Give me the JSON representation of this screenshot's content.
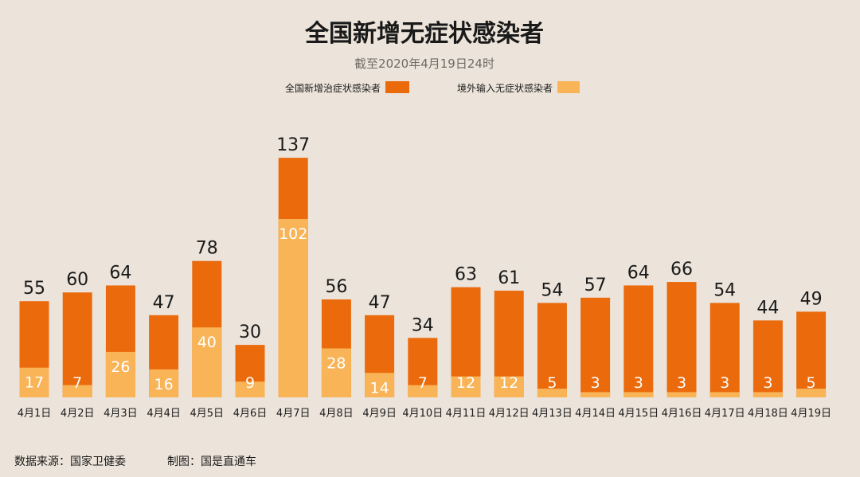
{
  "chart_data": {
    "type": "bar",
    "stacked": true,
    "title": "全国新增无症状感染者",
    "subtitle": "截至2020年4月19日24时",
    "legend_position": "top",
    "categories": [
      "4月1日",
      "4月2日",
      "4月3日",
      "4月4日",
      "4月5日",
      "4月6日",
      "4月7日",
      "4月8日",
      "4月9日",
      "4月10日",
      "4月11日",
      "4月12日",
      "4月13日",
      "4月14日",
      "4月15日",
      "4月16日",
      "4月17日",
      "4月18日",
      "4月19日"
    ],
    "totals": [
      55,
      60,
      64,
      47,
      78,
      30,
      137,
      56,
      47,
      34,
      63,
      61,
      54,
      57,
      64,
      66,
      54,
      44,
      49
    ],
    "series": [
      {
        "name": "全国新增治症状感染者",
        "color": "#ea6a0c"
      },
      {
        "name": "境外输入无症状感染者",
        "color": "#f9b458",
        "values": [
          17,
          7,
          26,
          16,
          40,
          9,
          102,
          28,
          14,
          7,
          12,
          12,
          5,
          3,
          3,
          3,
          3,
          3,
          5
        ]
      }
    ],
    "ylim": [
      0,
      140
    ],
    "grid": false
  },
  "footer": {
    "source": "数据来源：国家卫健委",
    "credit": "制图：国是直通车"
  }
}
